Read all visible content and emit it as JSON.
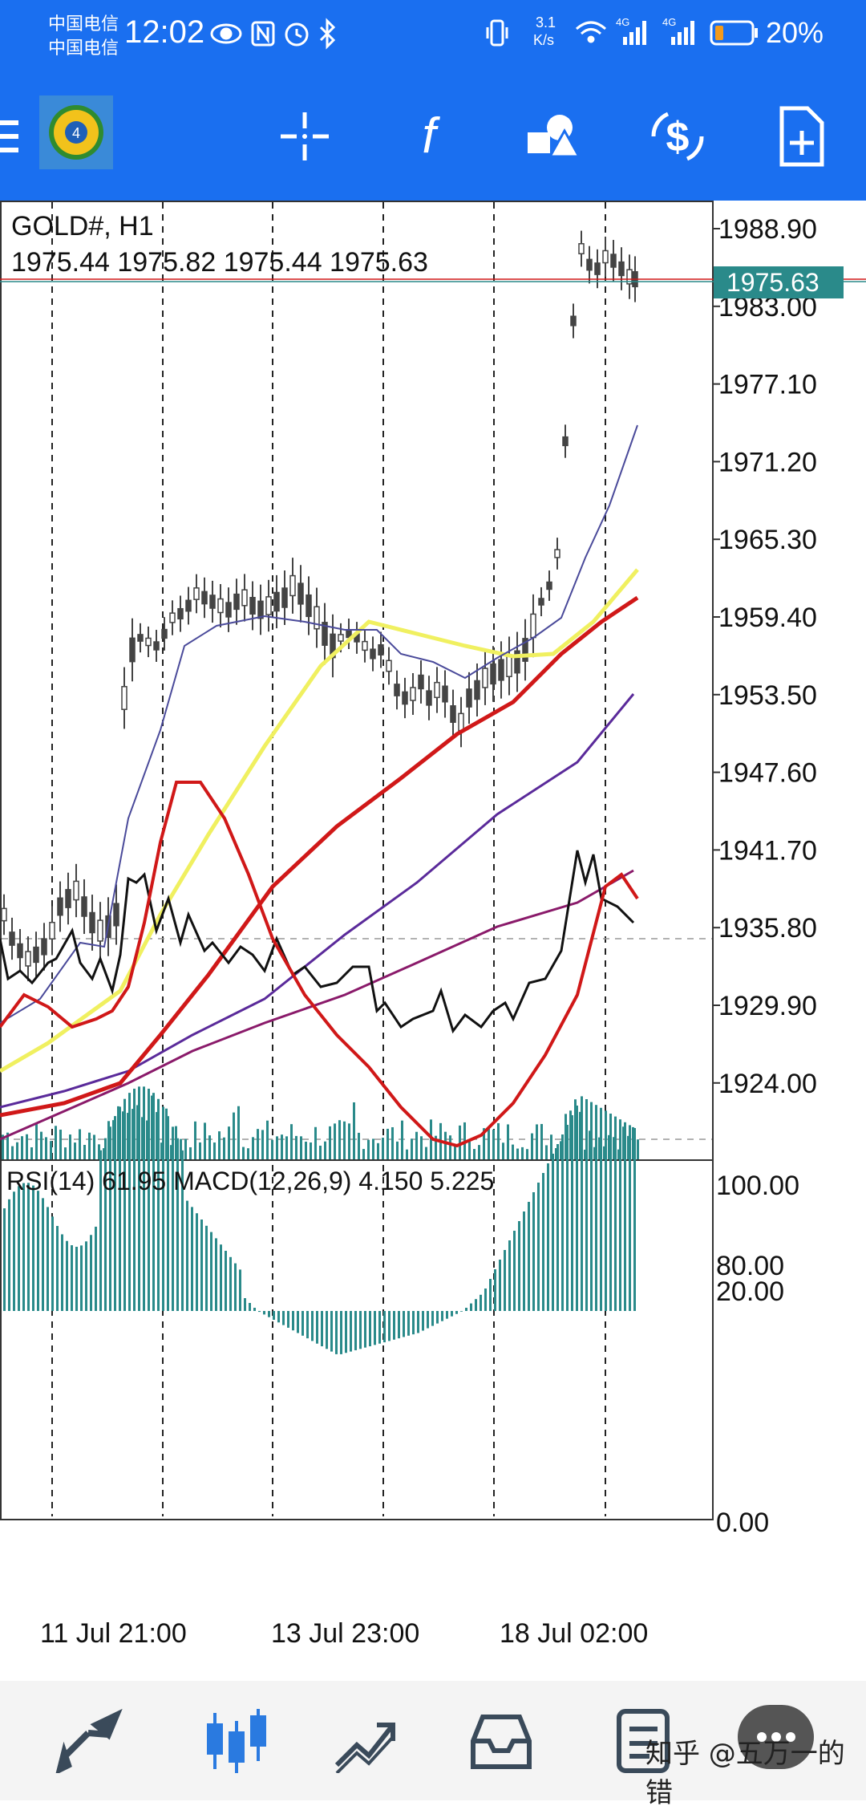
{
  "status_bar": {
    "carrier_line1": "中国电信",
    "carrier_line2": "中国电信",
    "time": "12:02",
    "net_speed_top": "3.1",
    "net_speed_bottom": "K/s",
    "signal1_label": "4G",
    "signal2_label": "4G",
    "battery": "20%"
  },
  "toolbar": {
    "icons": [
      "menu-icon",
      "app-logo",
      "crosshair-icon",
      "function-icon",
      "objects-icon",
      "trade-icon",
      "new-order-icon"
    ]
  },
  "chart": {
    "symbol": "GOLD#, H1",
    "ohlc": "1975.44 1975.82 1975.44 1975.63",
    "current_price": "1975.63",
    "price_axis": [
      "1988.90",
      "1983.00",
      "1977.10",
      "1971.20",
      "1965.30",
      "1959.40",
      "1953.50",
      "1947.60",
      "1941.70",
      "1935.80",
      "1929.90",
      "1924.00"
    ],
    "indicator_label": "RSI(14) 61.95 MACD(12,26,9) 4.150 5.225",
    "indicator_axis": [
      "100.00",
      "80.00",
      "20.00",
      "0.00"
    ],
    "time_axis": [
      "11 Jul 21:00",
      "13 Jul 23:00",
      "18 Jul 02:00"
    ],
    "colors": {
      "yellow_ma": "#f0f060",
      "red_ma": "#d01818",
      "purple_ma": "#5a2a9a",
      "maroon_ma": "#8a1a6a",
      "candle": "#444444",
      "volume": "#2a8a8a",
      "price_tag": "#2a8a8a"
    }
  },
  "bottom_nav": {
    "icons": [
      "quotes-icon",
      "chart-icon",
      "trade-icon",
      "history-icon",
      "news-icon"
    ],
    "watermark": "知乎 @五万一的错"
  }
}
